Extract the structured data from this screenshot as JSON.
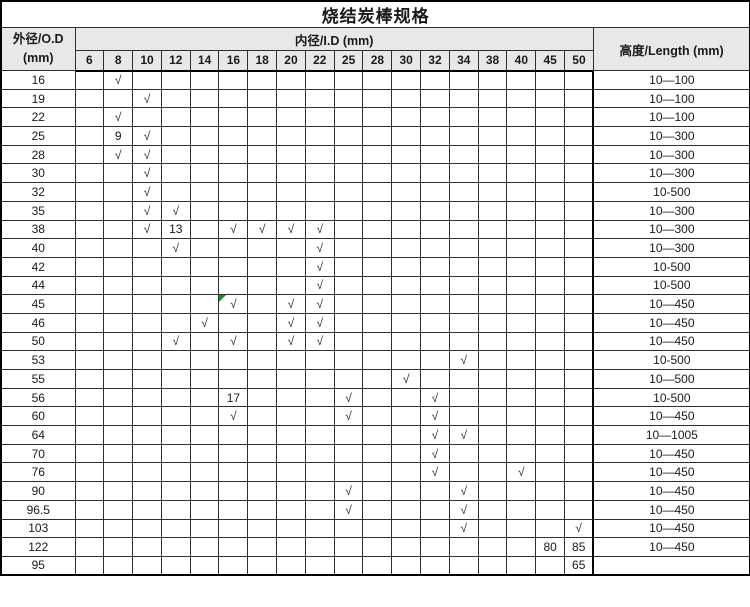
{
  "title": "烧结炭棒规格",
  "headers": {
    "od_line1": "外径/O.D",
    "od_line2": "(mm)",
    "id": "内径/I.D  (mm)",
    "length": "高度/Length  (mm)"
  },
  "id_columns": [
    "6",
    "8",
    "10",
    "12",
    "14",
    "16",
    "18",
    "20",
    "22",
    "25",
    "28",
    "30",
    "32",
    "34",
    "38",
    "40",
    "45",
    "50"
  ],
  "icons": {
    "check": "√",
    "green_corner": "green-corner-marker"
  },
  "colors": {
    "header_bg": "#e8e8e8",
    "grid_line": "#2f2f2f",
    "outer_border": "#000000",
    "text": "#1a1a1a",
    "green_marker": "#0f9d0f",
    "row_bg": "#ffffff"
  },
  "rows": [
    {
      "od": "16",
      "cells": [
        "",
        "√",
        "",
        "",
        "",
        "",
        "",
        "",
        "",
        "",
        "",
        "",
        "",
        "",
        "",
        "",
        "",
        ""
      ],
      "length": "10—100"
    },
    {
      "od": "19",
      "cells": [
        "",
        "",
        "√",
        "",
        "",
        "",
        "",
        "",
        "",
        "",
        "",
        "",
        "",
        "",
        "",
        "",
        "",
        ""
      ],
      "length": "10—100"
    },
    {
      "od": "22",
      "cells": [
        "",
        "√",
        "",
        "",
        "",
        "",
        "",
        "",
        "",
        "",
        "",
        "",
        "",
        "",
        "",
        "",
        "",
        ""
      ],
      "length": "10—100"
    },
    {
      "od": "25",
      "cells": [
        "",
        "9",
        "√",
        "",
        "",
        "",
        "",
        "",
        "",
        "",
        "",
        "",
        "",
        "",
        "",
        "",
        "",
        ""
      ],
      "length": "10—300"
    },
    {
      "od": "28",
      "cells": [
        "",
        "√",
        "√",
        "",
        "",
        "",
        "",
        "",
        "",
        "",
        "",
        "",
        "",
        "",
        "",
        "",
        "",
        ""
      ],
      "length": "10—300"
    },
    {
      "od": "30",
      "cells": [
        "",
        "",
        "√",
        "",
        "",
        "",
        "",
        "",
        "",
        "",
        "",
        "",
        "",
        "",
        "",
        "",
        "",
        ""
      ],
      "length": "10—300"
    },
    {
      "od": "32",
      "cells": [
        "",
        "",
        "√",
        "",
        "",
        "",
        "",
        "",
        "",
        "",
        "",
        "",
        "",
        "",
        "",
        "",
        "",
        ""
      ],
      "length": "10-500"
    },
    {
      "od": "35",
      "cells": [
        "",
        "",
        "√",
        "√",
        "",
        "",
        "",
        "",
        "",
        "",
        "",
        "",
        "",
        "",
        "",
        "",
        "",
        ""
      ],
      "length": "10—300"
    },
    {
      "od": "38",
      "cells": [
        "",
        "",
        "√",
        "13",
        "",
        "√",
        "√",
        "√",
        "√",
        "",
        "",
        "",
        "",
        "",
        "",
        "",
        "",
        ""
      ],
      "length": "10—300"
    },
    {
      "od": "40",
      "cells": [
        "",
        "",
        "",
        "√",
        "",
        "",
        "",
        "",
        "√",
        "",
        "",
        "",
        "",
        "",
        "",
        "",
        "",
        ""
      ],
      "length": "10—300"
    },
    {
      "od": "42",
      "cells": [
        "",
        "",
        "",
        "",
        "",
        "",
        "",
        "",
        "√",
        "",
        "",
        "",
        "",
        "",
        "",
        "",
        "",
        ""
      ],
      "length": "10-500"
    },
    {
      "od": "44",
      "cells": [
        "",
        "",
        "",
        "",
        "",
        "",
        "",
        "",
        "√",
        "",
        "",
        "",
        "",
        "",
        "",
        "",
        "",
        ""
      ],
      "length": "10-500"
    },
    {
      "od": "45",
      "cells": [
        "",
        "",
        "",
        "",
        "",
        "√",
        "",
        "√",
        "√",
        "",
        "",
        "",
        "",
        "",
        "",
        "",
        "",
        ""
      ],
      "length": "10—450",
      "green_corner_index": 5
    },
    {
      "od": "46",
      "cells": [
        "",
        "",
        "",
        "",
        "√",
        "",
        "",
        "√",
        "√",
        "",
        "",
        "",
        "",
        "",
        "",
        "",
        "",
        ""
      ],
      "length": "10—450"
    },
    {
      "od": "50",
      "cells": [
        "",
        "",
        "",
        "√",
        "",
        "√",
        "",
        "√",
        "√",
        "",
        "",
        "",
        "",
        "",
        "",
        "",
        "",
        ""
      ],
      "length": "10—450"
    },
    {
      "od": "53",
      "cells": [
        "",
        "",
        "",
        "",
        "",
        "",
        "",
        "",
        "",
        "",
        "",
        "",
        "",
        "√",
        "",
        "",
        "",
        ""
      ],
      "length": "10-500"
    },
    {
      "od": "55",
      "cells": [
        "",
        "",
        "",
        "",
        "",
        "",
        "",
        "",
        "",
        "",
        "",
        "√",
        "",
        "",
        "",
        "",
        "",
        ""
      ],
      "length": "10—500"
    },
    {
      "od": "56",
      "cells": [
        "",
        "",
        "",
        "",
        "",
        "17",
        "",
        "",
        "",
        "√",
        "",
        "",
        "√",
        "",
        "",
        "",
        "",
        ""
      ],
      "length": "10-500"
    },
    {
      "od": "60",
      "cells": [
        "",
        "",
        "",
        "",
        "",
        "√",
        "",
        "",
        "",
        "√",
        "",
        "",
        "√",
        "",
        "",
        "",
        "",
        ""
      ],
      "length": "10—450"
    },
    {
      "od": "64",
      "cells": [
        "",
        "",
        "",
        "",
        "",
        "",
        "",
        "",
        "",
        "",
        "",
        "",
        "√",
        "√",
        "",
        "",
        "",
        ""
      ],
      "length": "10—1005"
    },
    {
      "od": "70",
      "cells": [
        "",
        "",
        "",
        "",
        "",
        "",
        "",
        "",
        "",
        "",
        "",
        "",
        "√",
        "",
        "",
        "",
        "",
        ""
      ],
      "length": "10—450"
    },
    {
      "od": "76",
      "cells": [
        "",
        "",
        "",
        "",
        "",
        "",
        "",
        "",
        "",
        "",
        "",
        "",
        "√",
        "",
        "",
        "√",
        "",
        ""
      ],
      "length": "10—450"
    },
    {
      "od": "90",
      "cells": [
        "",
        "",
        "",
        "",
        "",
        "",
        "",
        "",
        "",
        "√",
        "",
        "",
        "",
        "√",
        "",
        "",
        "",
        ""
      ],
      "length": "10—450"
    },
    {
      "od": "96.5",
      "cells": [
        "",
        "",
        "",
        "",
        "",
        "",
        "",
        "",
        "",
        "√",
        "",
        "",
        "",
        "√",
        "",
        "",
        "",
        ""
      ],
      "length": "10—450"
    },
    {
      "od": "103",
      "cells": [
        "",
        "",
        "",
        "",
        "",
        "",
        "",
        "",
        "",
        "",
        "",
        "",
        "",
        "√",
        "",
        "",
        "",
        "√"
      ],
      "length": "10—450"
    },
    {
      "od": "122",
      "cells": [
        "",
        "",
        "",
        "",
        "",
        "",
        "",
        "",
        "",
        "",
        "",
        "",
        "",
        "",
        "",
        "",
        "80",
        "85"
      ],
      "length": "10—450"
    },
    {
      "od": "95",
      "cells": [
        "",
        "",
        "",
        "",
        "",
        "",
        "",
        "",
        "",
        "",
        "",
        "",
        "",
        "",
        "",
        "",
        "",
        "65"
      ],
      "length": ""
    }
  ]
}
